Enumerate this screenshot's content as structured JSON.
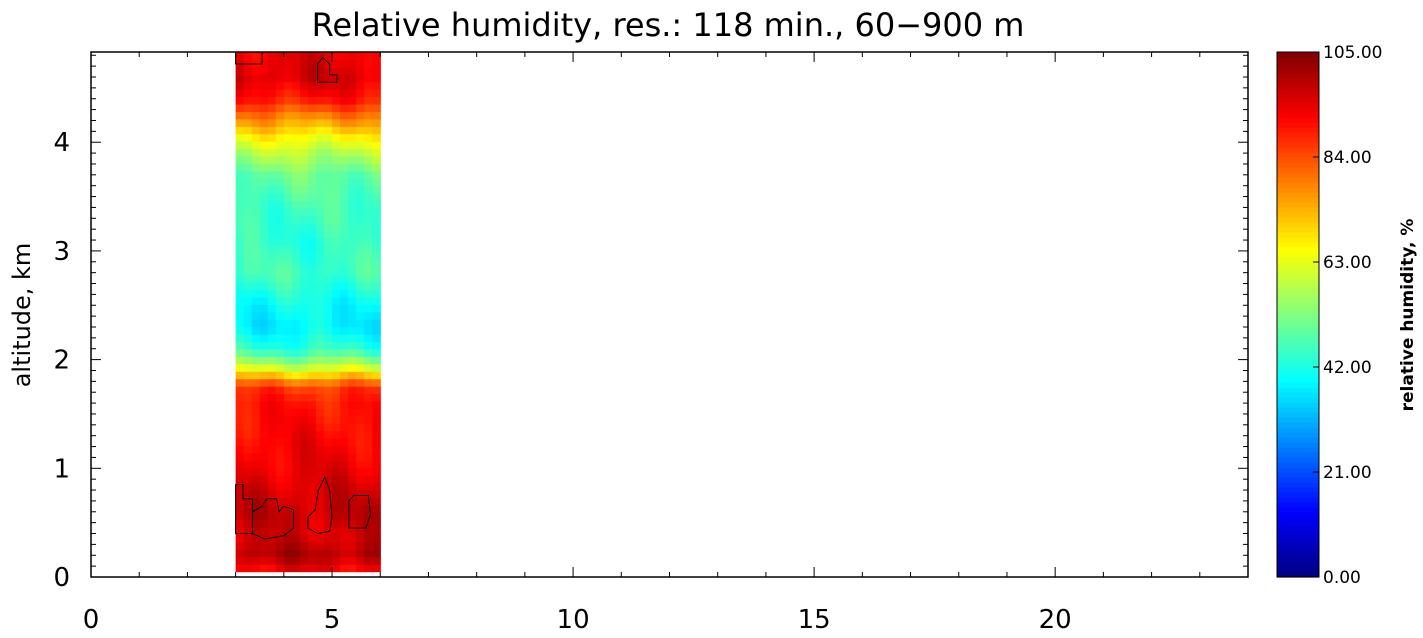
{
  "chart_data": {
    "type": "heatmap",
    "title": "Relative humidity, res.: 118 min.,  60−900 m",
    "xlabel": "",
    "ylabel": "altitude, km",
    "xlim": [
      0,
      24
    ],
    "ylim": [
      0,
      4.83
    ],
    "x_ticks": [
      0,
      5,
      10,
      15,
      20
    ],
    "y_ticks": [
      0,
      1,
      2,
      3,
      4
    ],
    "data_x_range": [
      3,
      6
    ],
    "data_y_range": [
      0.05,
      4.83
    ],
    "profile": {
      "altitude_km": [
        0.05,
        0.2,
        0.4,
        0.6,
        0.8,
        1.0,
        1.3,
        1.6,
        1.75,
        1.85,
        1.95,
        2.1,
        2.3,
        2.5,
        2.8,
        3.1,
        3.4,
        3.7,
        3.9,
        4.05,
        4.2,
        4.4,
        4.6,
        4.83
      ],
      "relative_humidity": [
        92,
        100,
        96,
        98,
        96,
        94,
        92,
        90,
        86,
        72,
        58,
        44,
        38,
        40,
        46,
        44,
        46,
        50,
        58,
        66,
        76,
        90,
        96,
        94
      ]
    },
    "contour_level": 100,
    "colorbar": {
      "label": "relative humidity, %",
      "min": 0,
      "max": 105,
      "ticks": [
        "0.00",
        "21.00",
        "42.00",
        "63.00",
        "84.00",
        "105.00"
      ]
    },
    "colormap": [
      "#00007f",
      "#0000ff",
      "#0080ff",
      "#00ffff",
      "#80ff80",
      "#ffff00",
      "#ff8000",
      "#ff0000",
      "#7f0000"
    ]
  }
}
